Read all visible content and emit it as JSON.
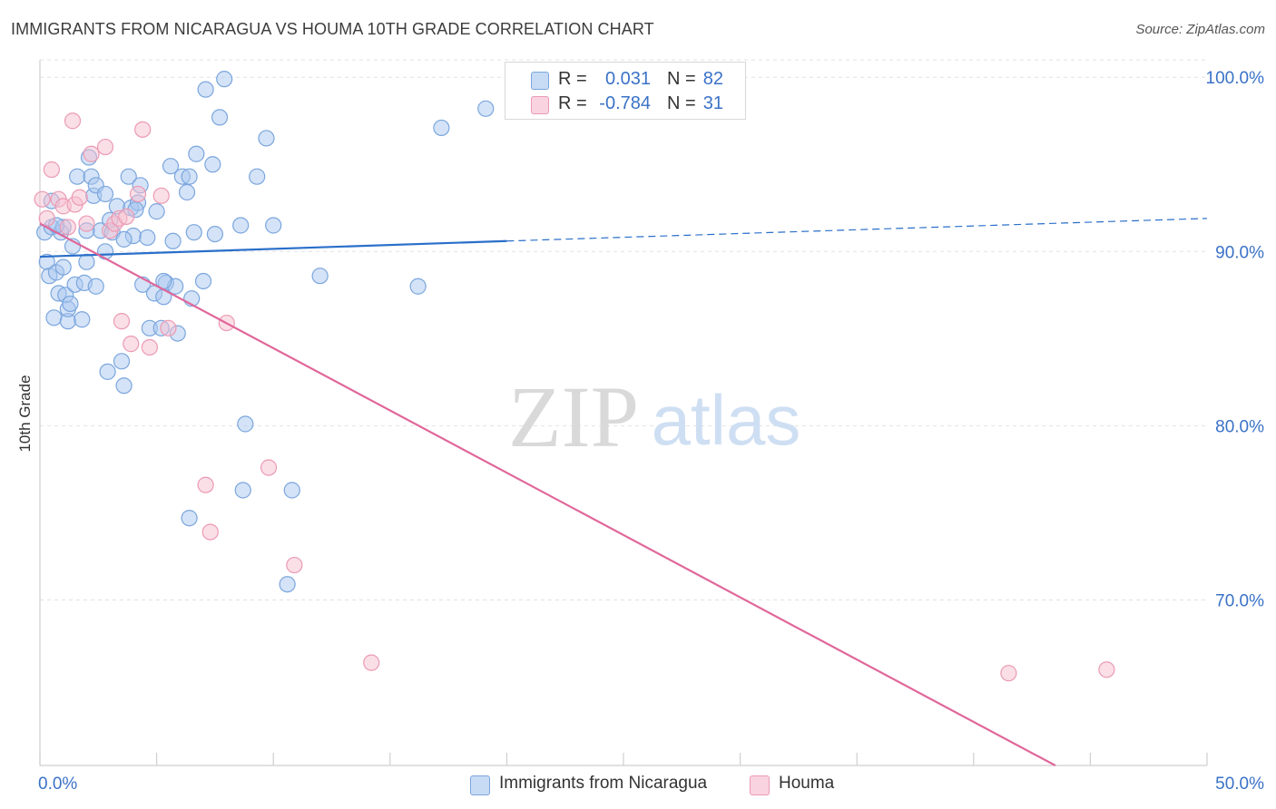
{
  "header": {
    "title": "IMMIGRANTS FROM NICARAGUA VS HOUMA 10TH GRADE CORRELATION CHART",
    "source": "Source: ZipAtlas.com"
  },
  "watermark": {
    "zip": "ZIP",
    "atlas": "atlas"
  },
  "colors": {
    "blue_fill": "#a9c8ef",
    "blue_stroke": "#7ba6de",
    "blue_line": "#2a6fca",
    "pink_fill": "#f6bfd0",
    "pink_stroke": "#ec9ab4",
    "pink_line": "#e0679a",
    "tick_text": "#3a72c7",
    "grid": "#e2e2e2"
  },
  "legend": {
    "rows": [
      {
        "r_label": "R =",
        "r_value": "0.031",
        "n_label": "N =",
        "n_value": "82"
      },
      {
        "r_label": "R =",
        "r_value": "-0.784",
        "n_label": "N =",
        "n_value": "31"
      }
    ]
  },
  "bottom_legend": {
    "items": [
      {
        "label": "Immigrants from Nicaragua"
      },
      {
        "label": "Houma"
      }
    ]
  },
  "chart_data": {
    "type": "scatter",
    "title": "IMMIGRANTS FROM NICARAGUA VS HOUMA 10TH GRADE CORRELATION CHART",
    "xlabel": "",
    "ylabel": "10th Grade",
    "xlim": [
      0,
      50
    ],
    "ylim": [
      60.5,
      101
    ],
    "x_tick_labels": [
      "0.0%",
      "50.0%"
    ],
    "y_ticks": [
      70,
      80,
      90,
      100
    ],
    "y_tick_labels": [
      "70.0%",
      "80.0%",
      "90.0%",
      "100.0%"
    ],
    "grid": true,
    "legend_position": "top-center",
    "series": [
      {
        "name": "Immigrants from Nicaragua",
        "r": 0.031,
        "n": 82,
        "trend": {
          "x": [
            0,
            20
          ],
          "y": [
            89.7,
            90.6
          ],
          "dashed_to": [
            50,
            91.9
          ]
        },
        "points": [
          [
            0.2,
            91.1
          ],
          [
            0.3,
            89.4
          ],
          [
            0.4,
            88.6
          ],
          [
            0.5,
            91.4
          ],
          [
            0.6,
            86.2
          ],
          [
            0.7,
            88.8
          ],
          [
            0.8,
            87.6
          ],
          [
            0.9,
            91.1
          ],
          [
            1.0,
            89.1
          ],
          [
            1.1,
            87.5
          ],
          [
            1.2,
            86.0
          ],
          [
            1.2,
            86.7
          ],
          [
            1.4,
            90.3
          ],
          [
            1.5,
            88.1
          ],
          [
            1.6,
            94.3
          ],
          [
            1.8,
            86.1
          ],
          [
            1.9,
            88.2
          ],
          [
            2.0,
            89.4
          ],
          [
            2.1,
            95.4
          ],
          [
            2.2,
            94.3
          ],
          [
            2.3,
            93.2
          ],
          [
            2.4,
            93.8
          ],
          [
            2.6,
            91.2
          ],
          [
            2.8,
            93.3
          ],
          [
            2.8,
            90.0
          ],
          [
            2.9,
            83.1
          ],
          [
            3.1,
            91.1
          ],
          [
            3.3,
            92.6
          ],
          [
            3.5,
            83.7
          ],
          [
            3.6,
            82.3
          ],
          [
            3.8,
            94.3
          ],
          [
            3.9,
            92.5
          ],
          [
            4.0,
            90.9
          ],
          [
            4.2,
            92.8
          ],
          [
            4.3,
            93.8
          ],
          [
            4.4,
            88.1
          ],
          [
            4.6,
            90.8
          ],
          [
            4.7,
            85.6
          ],
          [
            4.9,
            87.6
          ],
          [
            5.0,
            92.3
          ],
          [
            5.2,
            85.6
          ],
          [
            5.3,
            87.4
          ],
          [
            5.4,
            88.2
          ],
          [
            5.6,
            94.9
          ],
          [
            5.7,
            90.6
          ],
          [
            5.8,
            88.0
          ],
          [
            5.9,
            85.3
          ],
          [
            6.1,
            94.3
          ],
          [
            6.3,
            93.4
          ],
          [
            6.4,
            94.3
          ],
          [
            6.5,
            87.3
          ],
          [
            6.6,
            91.1
          ],
          [
            6.7,
            95.6
          ],
          [
            7.0,
            88.3
          ],
          [
            7.1,
            99.3
          ],
          [
            7.4,
            95.0
          ],
          [
            7.5,
            91.0
          ],
          [
            7.7,
            97.7
          ],
          [
            7.9,
            99.9
          ],
          [
            8.6,
            91.5
          ],
          [
            8.7,
            76.3
          ],
          [
            9.3,
            94.3
          ],
          [
            9.7,
            96.5
          ],
          [
            10.0,
            91.5
          ],
          [
            10.6,
            70.9
          ],
          [
            10.8,
            76.3
          ],
          [
            12.0,
            88.6
          ],
          [
            16.2,
            88.0
          ],
          [
            17.2,
            97.1
          ],
          [
            19.1,
            98.2
          ],
          [
            6.4,
            74.7
          ],
          [
            8.8,
            80.1
          ],
          [
            0.5,
            92.9
          ],
          [
            1.0,
            91.4
          ],
          [
            3.0,
            91.8
          ],
          [
            4.1,
            92.4
          ],
          [
            5.3,
            88.3
          ],
          [
            2.4,
            88.0
          ],
          [
            3.6,
            90.7
          ],
          [
            1.3,
            87.0
          ],
          [
            0.7,
            91.5
          ],
          [
            2.0,
            91.2
          ]
        ]
      },
      {
        "name": "Houma",
        "r": -0.784,
        "n": 31,
        "trend": {
          "x": [
            0,
            43.5
          ],
          "y": [
            91.6,
            60.5
          ]
        },
        "points": [
          [
            0.1,
            93.0
          ],
          [
            0.3,
            91.9
          ],
          [
            0.5,
            94.7
          ],
          [
            0.8,
            93.0
          ],
          [
            1.0,
            92.6
          ],
          [
            1.2,
            91.4
          ],
          [
            1.5,
            92.7
          ],
          [
            1.7,
            93.1
          ],
          [
            2.0,
            91.6
          ],
          [
            2.2,
            95.6
          ],
          [
            1.4,
            97.5
          ],
          [
            2.8,
            96.0
          ],
          [
            3.0,
            91.2
          ],
          [
            3.2,
            91.6
          ],
          [
            3.4,
            91.9
          ],
          [
            3.5,
            86.0
          ],
          [
            3.7,
            92.0
          ],
          [
            3.9,
            84.7
          ],
          [
            4.2,
            93.3
          ],
          [
            4.4,
            97.0
          ],
          [
            4.7,
            84.5
          ],
          [
            5.2,
            93.2
          ],
          [
            5.5,
            85.6
          ],
          [
            7.1,
            76.6
          ],
          [
            7.3,
            73.9
          ],
          [
            8.0,
            85.9
          ],
          [
            9.8,
            77.6
          ],
          [
            10.9,
            72.0
          ],
          [
            14.2,
            66.4
          ],
          [
            41.5,
            65.8
          ],
          [
            45.7,
            66.0
          ]
        ]
      }
    ]
  }
}
